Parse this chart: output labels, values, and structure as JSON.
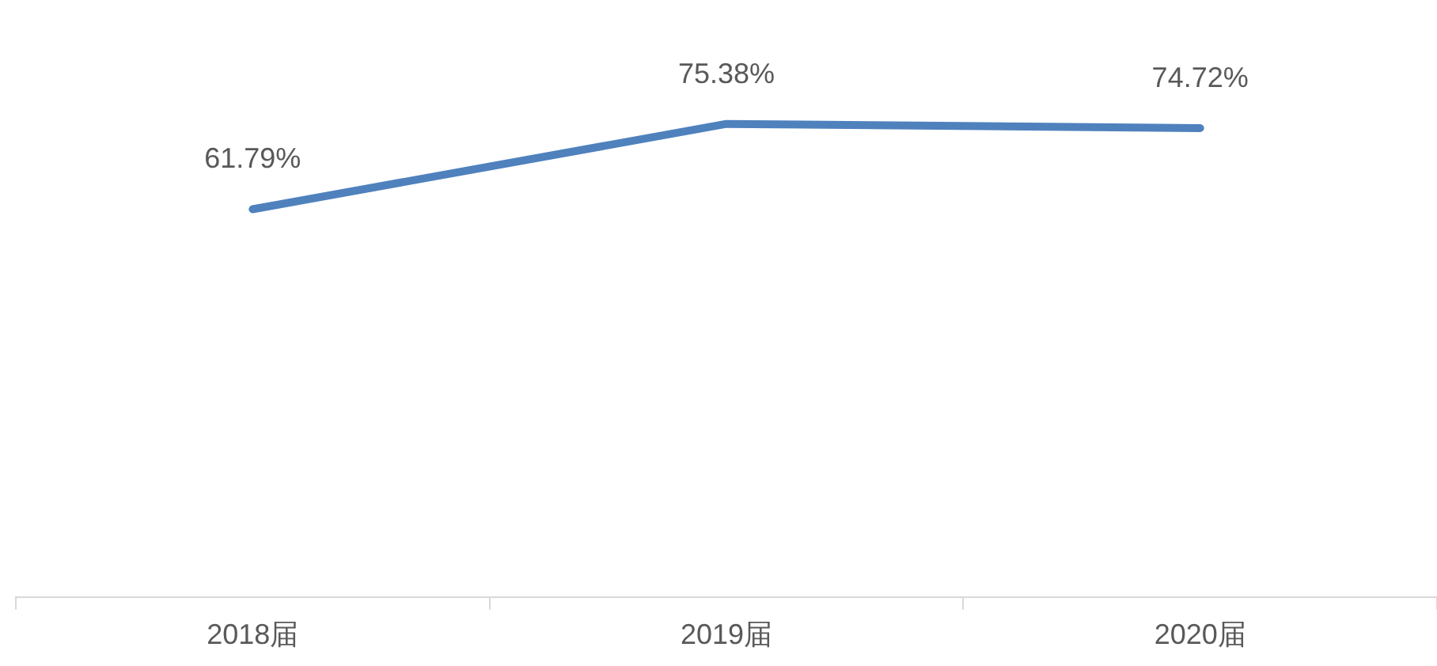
{
  "chart_data": {
    "type": "line",
    "categories": [
      "2018届",
      "2019届",
      "2020届"
    ],
    "series": [
      {
        "color": "#4f81bd",
        "values": [
          61.79,
          75.38,
          74.72
        ],
        "value_labels": [
          "61.79%",
          "75.38%",
          "74.72%"
        ]
      }
    ],
    "grid": false,
    "legend": false,
    "marker": "none",
    "line_style": "solid",
    "tick_labels": "x"
  }
}
